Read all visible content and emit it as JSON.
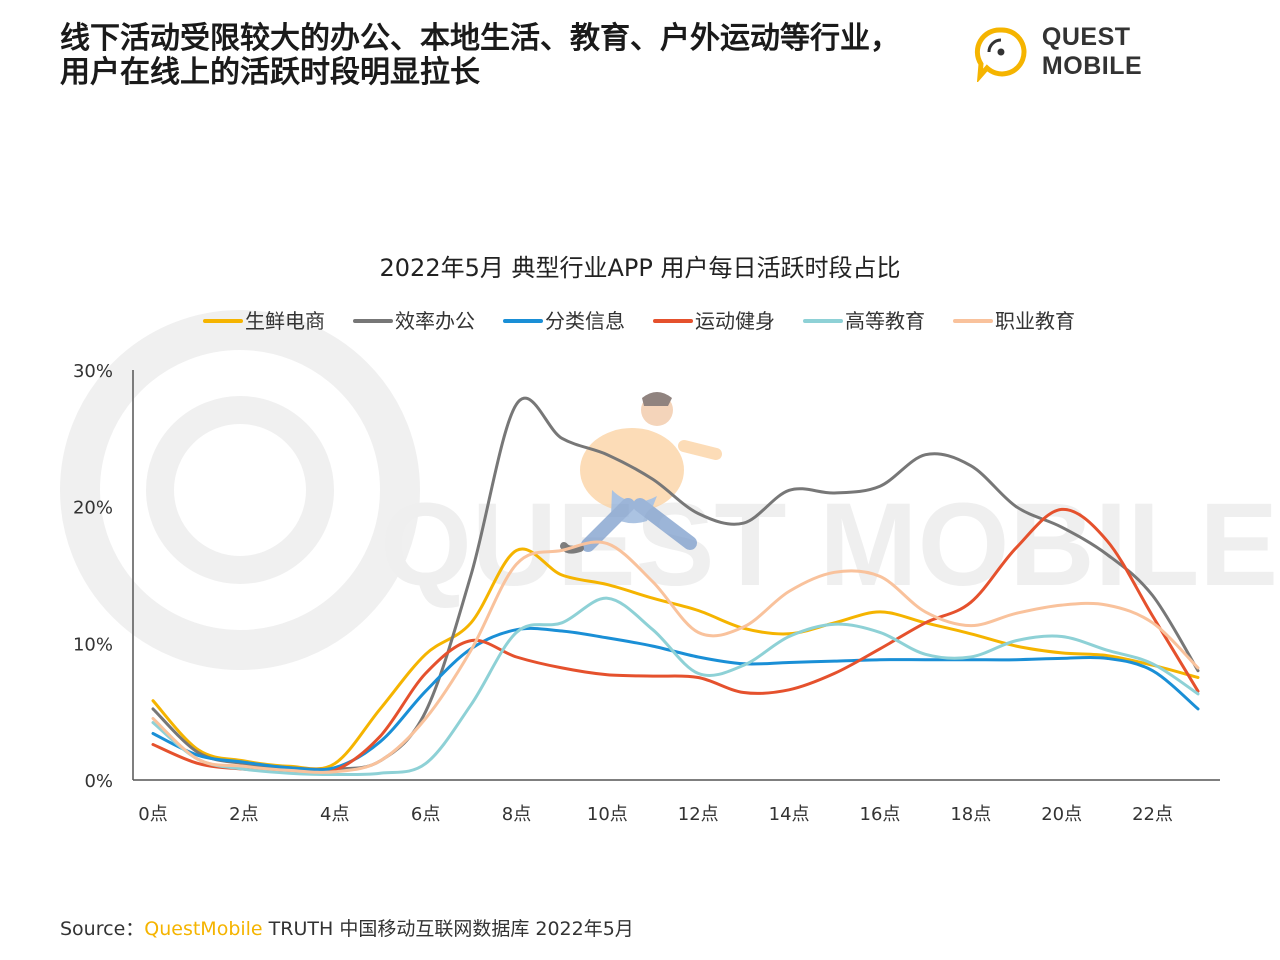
{
  "headline": {
    "line1": "线下活动受限较大的办公、本地生活、教育、户外运动等行业，",
    "line2": "用户在线上的活跃时段明显拉长"
  },
  "logo": {
    "text": "QUEST MOBILE",
    "watermark_text": "QUEST MOBILE"
  },
  "source": {
    "prefix": "Source：",
    "brand": "QuestMobile",
    "rest": " TRUTH 中国移动互联网数据库 2022年5月"
  },
  "colors": {
    "brand": "#f5b400",
    "axis": "#555555",
    "watermark": "#eeeeee"
  },
  "chart_data": {
    "type": "line",
    "title": "2022年5月 典型行业APP 用户每日活跃时段占比",
    "xlabel": "",
    "ylabel": "",
    "ylim": [
      0,
      30
    ],
    "yticks": [
      0,
      10,
      20,
      30
    ],
    "ytick_labels": [
      "0%",
      "10%",
      "20%",
      "30%"
    ],
    "x": [
      0,
      1,
      2,
      3,
      4,
      5,
      6,
      7,
      8,
      9,
      10,
      11,
      12,
      13,
      14,
      15,
      16,
      17,
      18,
      19,
      20,
      21,
      22,
      23
    ],
    "xtick_positions": [
      0,
      2,
      4,
      6,
      8,
      10,
      12,
      14,
      16,
      18,
      20,
      22
    ],
    "xtick_labels": [
      "0点",
      "2点",
      "4点",
      "6点",
      "8点",
      "10点",
      "12点",
      "14点",
      "16点",
      "18点",
      "20点",
      "22点"
    ],
    "grid": false,
    "legend_position": "top",
    "series": [
      {
        "name": "生鲜电商",
        "color": "#f5b400",
        "values": [
          5.8,
          2.2,
          1.4,
          1.0,
          1.2,
          5.2,
          9.2,
          11.5,
          16.8,
          15.0,
          14.3,
          13.3,
          12.4,
          11.1,
          10.7,
          11.5,
          12.3,
          11.5,
          10.7,
          9.8,
          9.3,
          9.1,
          8.4,
          7.5
        ]
      },
      {
        "name": "效率办公",
        "color": "#777777",
        "values": [
          5.2,
          2.0,
          1.2,
          0.9,
          0.8,
          1.4,
          5.0,
          15.0,
          27.5,
          25.0,
          23.8,
          22.0,
          19.5,
          18.8,
          21.2,
          21.0,
          21.5,
          23.8,
          23.0,
          20.0,
          18.5,
          16.5,
          13.5,
          8.0
        ]
      },
      {
        "name": "分类信息",
        "color": "#1a8fd6",
        "values": [
          3.4,
          1.8,
          1.3,
          0.9,
          0.9,
          2.8,
          6.5,
          9.6,
          11.0,
          10.9,
          10.4,
          9.8,
          9.0,
          8.5,
          8.6,
          8.7,
          8.8,
          8.8,
          8.8,
          8.8,
          8.9,
          8.9,
          8.0,
          5.2
        ]
      },
      {
        "name": "运动健身",
        "color": "#e5512d",
        "values": [
          2.6,
          1.2,
          0.8,
          0.6,
          0.7,
          3.2,
          7.8,
          10.2,
          9.0,
          8.2,
          7.7,
          7.6,
          7.5,
          6.4,
          6.6,
          7.8,
          9.6,
          11.5,
          13.0,
          17.0,
          19.8,
          17.5,
          12.0,
          6.5
        ]
      },
      {
        "name": "高等教育",
        "color": "#8ed1d6",
        "values": [
          4.2,
          1.5,
          0.8,
          0.5,
          0.4,
          0.5,
          1.2,
          5.5,
          10.8,
          11.5,
          13.3,
          11.0,
          7.8,
          8.4,
          10.5,
          11.4,
          10.8,
          9.2,
          9.0,
          10.2,
          10.5,
          9.5,
          8.5,
          6.3
        ]
      },
      {
        "name": "职业教育",
        "color": "#f9c29c",
        "values": [
          4.5,
          1.5,
          1.0,
          0.7,
          0.6,
          1.4,
          4.5,
          9.5,
          15.8,
          16.8,
          17.3,
          14.5,
          10.8,
          11.2,
          13.8,
          15.2,
          14.9,
          12.3,
          11.3,
          12.2,
          12.8,
          12.8,
          11.5,
          8.2
        ]
      }
    ]
  }
}
